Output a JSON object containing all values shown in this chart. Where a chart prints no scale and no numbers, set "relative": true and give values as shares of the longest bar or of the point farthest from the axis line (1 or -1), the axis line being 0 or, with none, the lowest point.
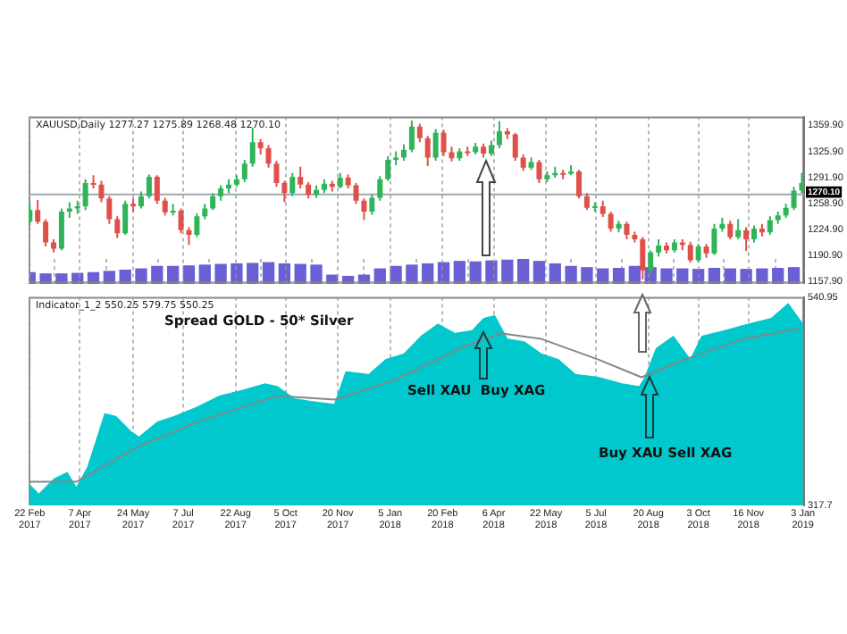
{
  "chart_data": [
    {
      "type": "candlestick",
      "title": "XAUUSD,Daily 1277.27 1275.89 1268.48 1270.10",
      "x": [
        "2017-02-22",
        "2017-03-01",
        "2017-03-08",
        "2017-03-15",
        "2017-03-22",
        "2017-03-29",
        "2017-04-05",
        "2017-04-12",
        "2017-04-19",
        "2017-04-26",
        "2017-05-03",
        "2017-05-10",
        "2017-05-17",
        "2017-05-24",
        "2017-05-31",
        "2017-06-07",
        "2017-06-14",
        "2017-06-21",
        "2017-06-28",
        "2017-07-05",
        "2017-07-12",
        "2017-07-19",
        "2017-07-26",
        "2017-08-02",
        "2017-08-09",
        "2017-08-16",
        "2017-08-23",
        "2017-08-30",
        "2017-09-06",
        "2017-09-13",
        "2017-09-20",
        "2017-09-27",
        "2017-10-04",
        "2017-10-11",
        "2017-10-18",
        "2017-10-25",
        "2017-11-01",
        "2017-11-08",
        "2017-11-15",
        "2017-11-22",
        "2017-11-29",
        "2017-12-06",
        "2017-12-13",
        "2017-12-20",
        "2017-12-27",
        "2018-01-03",
        "2018-01-10",
        "2018-01-17",
        "2018-01-24",
        "2018-01-31",
        "2018-02-07",
        "2018-02-14",
        "2018-02-21",
        "2018-02-28",
        "2018-03-07",
        "2018-03-14",
        "2018-03-21",
        "2018-03-28",
        "2018-04-04",
        "2018-04-11",
        "2018-04-18",
        "2018-04-25",
        "2018-05-02",
        "2018-05-09",
        "2018-05-16",
        "2018-05-23",
        "2018-05-30",
        "2018-06-06",
        "2018-06-13",
        "2018-06-20",
        "2018-06-27",
        "2018-07-04",
        "2018-07-11",
        "2018-07-18",
        "2018-07-25",
        "2018-08-01",
        "2018-08-08",
        "2018-08-15",
        "2018-08-22",
        "2018-08-29",
        "2018-09-05",
        "2018-09-12",
        "2018-09-19",
        "2018-09-26",
        "2018-10-03",
        "2018-10-10",
        "2018-10-17",
        "2018-10-24",
        "2018-10-31",
        "2018-11-07",
        "2018-11-14",
        "2018-11-21",
        "2018-11-28",
        "2018-12-05",
        "2018-12-12",
        "2018-12-19",
        "2018-12-26",
        "2019-01-02"
      ],
      "ohlc": [
        [
          1235,
          1258,
          1230,
          1250
        ],
        [
          1250,
          1263,
          1232,
          1235
        ],
        [
          1235,
          1238,
          1203,
          1208
        ],
        [
          1208,
          1212,
          1195,
          1200
        ],
        [
          1200,
          1252,
          1198,
          1248
        ],
        [
          1248,
          1260,
          1240,
          1252
        ],
        [
          1252,
          1262,
          1245,
          1255
        ],
        [
          1255,
          1290,
          1250,
          1285
        ],
        [
          1285,
          1295,
          1278,
          1283
        ],
        [
          1283,
          1288,
          1260,
          1265
        ],
        [
          1265,
          1268,
          1232,
          1238
        ],
        [
          1238,
          1242,
          1214,
          1220
        ],
        [
          1220,
          1262,
          1218,
          1258
        ],
        [
          1258,
          1265,
          1248,
          1255
        ],
        [
          1255,
          1274,
          1252,
          1268
        ],
        [
          1268,
          1296,
          1265,
          1293
        ],
        [
          1293,
          1295,
          1258,
          1262
        ],
        [
          1262,
          1266,
          1243,
          1247
        ],
        [
          1247,
          1258,
          1243,
          1249
        ],
        [
          1249,
          1252,
          1220,
          1224
        ],
        [
          1224,
          1228,
          1205,
          1218
        ],
        [
          1218,
          1246,
          1215,
          1242
        ],
        [
          1242,
          1258,
          1238,
          1252
        ],
        [
          1252,
          1272,
          1250,
          1268
        ],
        [
          1268,
          1282,
          1262,
          1278
        ],
        [
          1278,
          1290,
          1272,
          1283
        ],
        [
          1283,
          1295,
          1280,
          1290
        ],
        [
          1290,
          1315,
          1286,
          1310
        ],
        [
          1310,
          1357,
          1306,
          1338
        ],
        [
          1338,
          1342,
          1322,
          1330
        ],
        [
          1330,
          1334,
          1305,
          1310
        ],
        [
          1310,
          1314,
          1280,
          1285
        ],
        [
          1285,
          1288,
          1260,
          1272
        ],
        [
          1272,
          1298,
          1268,
          1293
        ],
        [
          1293,
          1306,
          1278,
          1283
        ],
        [
          1283,
          1286,
          1265,
          1270
        ],
        [
          1270,
          1282,
          1266,
          1276
        ],
        [
          1276,
          1290,
          1272,
          1284
        ],
        [
          1284,
          1288,
          1274,
          1280
        ],
        [
          1280,
          1298,
          1278,
          1292
        ],
        [
          1292,
          1296,
          1278,
          1282
        ],
        [
          1282,
          1285,
          1258,
          1262
        ],
        [
          1262,
          1265,
          1237,
          1248
        ],
        [
          1248,
          1270,
          1244,
          1266
        ],
        [
          1266,
          1294,
          1262,
          1290
        ],
        [
          1290,
          1320,
          1288,
          1315
        ],
        [
          1315,
          1326,
          1308,
          1318
        ],
        [
          1318,
          1335,
          1314,
          1328
        ],
        [
          1328,
          1366,
          1325,
          1358
        ],
        [
          1358,
          1362,
          1338,
          1343
        ],
        [
          1343,
          1346,
          1307,
          1318
        ],
        [
          1318,
          1355,
          1314,
          1350
        ],
        [
          1350,
          1354,
          1320,
          1325
        ],
        [
          1325,
          1332,
          1313,
          1317
        ],
        [
          1317,
          1330,
          1314,
          1326
        ],
        [
          1326,
          1332,
          1320,
          1325
        ],
        [
          1325,
          1337,
          1322,
          1332
        ],
        [
          1332,
          1336,
          1318,
          1323
        ],
        [
          1323,
          1340,
          1320,
          1334
        ],
        [
          1334,
          1365,
          1330,
          1352
        ],
        [
          1352,
          1356,
          1342,
          1348
        ],
        [
          1348,
          1350,
          1314,
          1318
        ],
        [
          1318,
          1322,
          1301,
          1305
        ],
        [
          1305,
          1318,
          1302,
          1312
        ],
        [
          1312,
          1315,
          1285,
          1290
        ],
        [
          1290,
          1300,
          1286,
          1295
        ],
        [
          1295,
          1306,
          1292,
          1298
        ],
        [
          1298,
          1302,
          1290,
          1297
        ],
        [
          1297,
          1308,
          1295,
          1300
        ],
        [
          1300,
          1302,
          1265,
          1268
        ],
        [
          1268,
          1272,
          1250,
          1253
        ],
        [
          1253,
          1260,
          1248,
          1255
        ],
        [
          1255,
          1262,
          1241,
          1245
        ],
        [
          1245,
          1248,
          1222,
          1226
        ],
        [
          1226,
          1236,
          1221,
          1232
        ],
        [
          1232,
          1235,
          1212,
          1218
        ],
        [
          1218,
          1222,
          1208,
          1212
        ],
        [
          1212,
          1215,
          1160,
          1172
        ],
        [
          1172,
          1198,
          1168,
          1195
        ],
        [
          1195,
          1212,
          1190,
          1204
        ],
        [
          1204,
          1208,
          1194,
          1198
        ],
        [
          1198,
          1212,
          1195,
          1208
        ],
        [
          1208,
          1212,
          1198,
          1205
        ],
        [
          1205,
          1209,
          1182,
          1185
        ],
        [
          1185,
          1206,
          1183,
          1203
        ],
        [
          1203,
          1206,
          1188,
          1194
        ],
        [
          1194,
          1232,
          1192,
          1226
        ],
        [
          1226,
          1240,
          1222,
          1232
        ],
        [
          1232,
          1236,
          1212,
          1215
        ],
        [
          1215,
          1238,
          1212,
          1224
        ],
        [
          1224,
          1228,
          1197,
          1212
        ],
        [
          1212,
          1230,
          1208,
          1226
        ],
        [
          1226,
          1232,
          1216,
          1221
        ],
        [
          1221,
          1242,
          1218,
          1237
        ],
        [
          1237,
          1248,
          1232,
          1243
        ],
        [
          1243,
          1258,
          1240,
          1253
        ],
        [
          1253,
          1280,
          1250,
          1275
        ],
        [
          1275,
          1298,
          1272,
          1285
        ]
      ],
      "colors": [
        "#2fb45a",
        "#e0504a",
        "#e0504a",
        "#e0504a",
        "#2fb45a",
        "#2fb45a",
        "#2fb45a",
        "#2fb45a",
        "#e0504a",
        "#e0504a",
        "#e0504a",
        "#e0504a",
        "#2fb45a",
        "#e0504a",
        "#2fb45a",
        "#2fb45a",
        "#e0504a",
        "#e0504a",
        "#2fb45a",
        "#e0504a",
        "#e0504a",
        "#2fb45a",
        "#2fb45a",
        "#2fb45a",
        "#2fb45a",
        "#2fb45a",
        "#2fb45a",
        "#2fb45a",
        "#2fb45a",
        "#e0504a",
        "#e0504a",
        "#e0504a",
        "#e0504a",
        "#2fb45a",
        "#e0504a",
        "#e0504a",
        "#2fb45a",
        "#2fb45a",
        "#e0504a",
        "#2fb45a",
        "#e0504a",
        "#e0504a",
        "#e0504a",
        "#2fb45a",
        "#2fb45a",
        "#2fb45a",
        "#2fb45a",
        "#2fb45a",
        "#2fb45a",
        "#e0504a",
        "#e0504a",
        "#2fb45a",
        "#e0504a",
        "#e0504a",
        "#2fb45a",
        "#e0504a",
        "#2fb45a",
        "#e0504a",
        "#2fb45a",
        "#2fb45a",
        "#e0504a",
        "#e0504a",
        "#e0504a",
        "#2fb45a",
        "#e0504a",
        "#2fb45a",
        "#2fb45a",
        "#e0504a",
        "#2fb45a",
        "#e0504a",
        "#e0504a",
        "#2fb45a",
        "#e0504a",
        "#e0504a",
        "#2fb45a",
        "#e0504a",
        "#e0504a",
        "#e0504a",
        "#2fb45a",
        "#2fb45a",
        "#e0504a",
        "#2fb45a",
        "#e0504a",
        "#e0504a",
        "#2fb45a",
        "#e0504a",
        "#2fb45a",
        "#2fb45a",
        "#e0504a",
        "#2fb45a",
        "#e0504a",
        "#2fb45a",
        "#e0504a",
        "#2fb45a",
        "#2fb45a",
        "#2fb45a",
        "#2fb45a",
        "#2fb45a"
      ],
      "xlim": [
        "2017-02-21",
        "2019-01-04"
      ],
      "xticks": [
        {
          "value": "2017-02-22",
          "label": null
        },
        {
          "value": "2017-04-07",
          "label": null
        },
        {
          "value": "2017-05-24",
          "label": null
        },
        {
          "value": "2017-07-07",
          "label": null
        },
        {
          "value": "2017-08-22",
          "label": null
        },
        {
          "value": "2017-10-05",
          "label": null
        },
        {
          "value": "2017-11-20",
          "label": null
        },
        {
          "value": "2018-01-05",
          "label": null
        },
        {
          "value": "2018-02-20",
          "label": null
        },
        {
          "value": "2018-04-06",
          "label": null
        },
        {
          "value": "2018-05-22",
          "label": null
        },
        {
          "value": "2018-07-05",
          "label": null
        },
        {
          "value": "2018-08-20",
          "label": null
        },
        {
          "value": "2018-10-03",
          "label": null
        },
        {
          "value": "2018-11-16",
          "label": null
        },
        {
          "value": "2019-01-03",
          "label": null
        }
      ],
      "ylim": [
        1155,
        1371
      ],
      "yticks": [
        {
          "value": 1157.9,
          "label": "1157.90"
        },
        {
          "value": 1190.9,
          "label": "1190.90"
        },
        {
          "value": 1224.9,
          "label": "1224.90"
        },
        {
          "value": 1258.9,
          "label": "1258.90"
        },
        {
          "value": 1291.9,
          "label": "1291.90"
        },
        {
          "value": 1325.9,
          "label": "1325.90"
        },
        {
          "value": 1359.9,
          "label": "1359.90"
        }
      ],
      "ref_lines": [
        {
          "axis": "y",
          "value": 1270.1,
          "label": "1270.10",
          "color": "#a0a8b0"
        }
      ],
      "grid": "x",
      "tick_labels": "y"
    },
    {
      "type": "bar",
      "relative": true,
      "color": "#6b5fd6",
      "x": [
        "2017-02-22",
        "2017-03-08",
        "2017-03-22",
        "2017-04-05",
        "2017-04-19",
        "2017-05-03",
        "2017-05-17",
        "2017-05-31",
        "2017-06-14",
        "2017-06-28",
        "2017-07-12",
        "2017-07-26",
        "2017-08-09",
        "2017-08-23",
        "2017-09-06",
        "2017-09-20",
        "2017-10-04",
        "2017-10-18",
        "2017-11-01",
        "2017-11-15",
        "2017-11-29",
        "2017-12-13",
        "2017-12-27",
        "2018-01-10",
        "2018-01-24",
        "2018-02-07",
        "2018-02-21",
        "2018-03-07",
        "2018-03-21",
        "2018-04-04",
        "2018-04-18",
        "2018-05-02",
        "2018-05-16",
        "2018-05-30",
        "2018-06-13",
        "2018-06-27",
        "2018-07-11",
        "2018-07-25",
        "2018-08-08",
        "2018-08-22",
        "2018-09-05",
        "2018-09-19",
        "2018-10-03",
        "2018-10-17",
        "2018-10-31",
        "2018-11-14",
        "2018-11-28",
        "2018-12-12",
        "2018-12-26"
      ],
      "values": [
        0.45,
        0.4,
        0.4,
        0.42,
        0.45,
        0.5,
        0.55,
        0.6,
        0.7,
        0.7,
        0.72,
        0.75,
        0.78,
        0.8,
        0.82,
        0.85,
        0.8,
        0.78,
        0.75,
        0.35,
        0.3,
        0.35,
        0.6,
        0.7,
        0.75,
        0.8,
        0.85,
        0.9,
        0.88,
        0.92,
        0.95,
        1,
        0.9,
        0.8,
        0.7,
        0.65,
        0.6,
        0.62,
        0.7,
        0.65,
        0.6,
        0.6,
        0.58,
        0.62,
        0.6,
        0.58,
        0.6,
        0.62,
        0.65
      ],
      "xlim": [
        "2017-02-21",
        "2019-01-04"
      ],
      "xticks": [
        {
          "value": "2017-02-22",
          "label": null
        },
        {
          "value": "2017-04-07",
          "label": null
        },
        {
          "value": "2017-05-24",
          "label": null
        },
        {
          "value": "2017-07-07",
          "label": null
        },
        {
          "value": "2017-08-22",
          "label": null
        },
        {
          "value": "2017-10-05",
          "label": null
        },
        {
          "value": "2017-11-20",
          "label": null
        },
        {
          "value": "2018-01-05",
          "label": null
        },
        {
          "value": "2018-02-20",
          "label": null
        },
        {
          "value": "2018-04-06",
          "label": null
        },
        {
          "value": "2018-05-22",
          "label": null
        },
        {
          "value": "2018-07-05",
          "label": null
        },
        {
          "value": "2018-08-20",
          "label": null
        },
        {
          "value": "2018-10-03",
          "label": null
        },
        {
          "value": "2018-11-16",
          "label": null
        },
        {
          "value": "2019-01-03",
          "label": null
        }
      ],
      "grid": "x",
      "tick_labels": false
    },
    {
      "type": "area",
      "title": "Indicator_1_2 550.25 579.75 550.25",
      "annotations": [
        "Spread GOLD - 50* Silver",
        "Sell XAU  Buy XAG",
        "Buy XAU Sell XAG"
      ],
      "series": [
        {
          "type": "area",
          "color": "#00c8cc",
          "x": [
            "2017-02-22",
            "2017-03-02",
            "2017-03-15",
            "2017-03-27",
            "2017-04-04",
            "2017-04-14",
            "2017-04-24",
            "2017-04-29",
            "2017-05-09",
            "2017-05-22",
            "2017-05-29",
            "2017-06-14",
            "2017-06-29",
            "2017-07-19",
            "2017-08-08",
            "2017-08-28",
            "2017-09-17",
            "2017-09-28",
            "2017-10-13",
            "2017-10-28",
            "2017-11-17",
            "2017-11-27",
            "2017-12-17",
            "2018-01-01",
            "2018-01-17",
            "2018-02-01",
            "2018-02-16",
            "2018-03-03",
            "2018-03-18",
            "2018-03-28",
            "2018-04-07",
            "2018-04-18",
            "2018-05-03",
            "2018-05-18",
            "2018-06-02",
            "2018-06-17",
            "2018-07-07",
            "2018-07-28",
            "2018-08-12",
            "2018-08-17",
            "2018-08-27",
            "2018-09-11",
            "2018-09-26",
            "2018-10-06",
            "2018-10-26",
            "2018-11-16",
            "2018-12-06",
            "2018-12-21",
            "2019-01-03"
          ],
          "values": [
            340,
            330,
            346,
            353,
            337,
            359,
            397,
            416,
            413,
            397,
            391,
            407,
            413,
            423,
            435,
            441,
            448,
            445,
            432,
            429,
            426,
            461,
            458,
            474,
            480,
            499,
            512,
            502,
            505,
            518,
            521,
            496,
            493,
            480,
            474,
            458,
            455,
            448,
            445,
            455,
            486,
            499,
            474,
            499,
            505,
            512,
            518,
            534,
            512
          ]
        },
        {
          "type": "line",
          "color": "#7f8a8a",
          "x": [
            "2017-02-22",
            "2017-04-04",
            "2017-05-29",
            "2017-07-19",
            "2017-09-28",
            "2017-11-17",
            "2018-01-07",
            "2018-03-13",
            "2018-04-12",
            "2018-05-18",
            "2018-07-07",
            "2018-08-14",
            "2018-09-21",
            "2018-11-11",
            "2018-12-31"
          ],
          "values": [
            343,
            343,
            381,
            407,
            435,
            431,
            451,
            489,
            502,
            496,
            474,
            455,
            474,
            496,
            507
          ]
        }
      ],
      "xlim": [
        "2017-02-21",
        "2019-01-04"
      ],
      "xticks": [
        {
          "value": "2017-02-22",
          "label": "22 Feb 2017"
        },
        {
          "value": "2017-04-07",
          "label": "7 Apr 2017"
        },
        {
          "value": "2017-05-24",
          "label": "24 May 2017"
        },
        {
          "value": "2017-07-07",
          "label": "7 Jul 2017"
        },
        {
          "value": "2017-08-22",
          "label": "22 Aug 2017"
        },
        {
          "value": "2017-10-05",
          "label": "5 Oct 2017"
        },
        {
          "value": "2017-11-20",
          "label": "20 Nov 2017"
        },
        {
          "value": "2018-01-05",
          "label": "5 Jan 2018"
        },
        {
          "value": "2018-02-20",
          "label": "20 Feb 2018"
        },
        {
          "value": "2018-04-06",
          "label": "6 Apr 2018"
        },
        {
          "value": "2018-05-22",
          "label": "22 May 2018"
        },
        {
          "value": "2018-07-05",
          "label": "5 Jul 2018"
        },
        {
          "value": "2018-08-20",
          "label": "20 Aug 2018"
        },
        {
          "value": "2018-10-03",
          "label": "3 Oct 2018"
        },
        {
          "value": "2018-11-16",
          "label": "16 Nov 2018"
        },
        {
          "value": "2019-01-03",
          "label": "3 Jan 2019"
        }
      ],
      "ylim": [
        317.7,
        540.95
      ],
      "yticks": [
        317.7,
        540.95
      ],
      "grid": "x"
    }
  ]
}
